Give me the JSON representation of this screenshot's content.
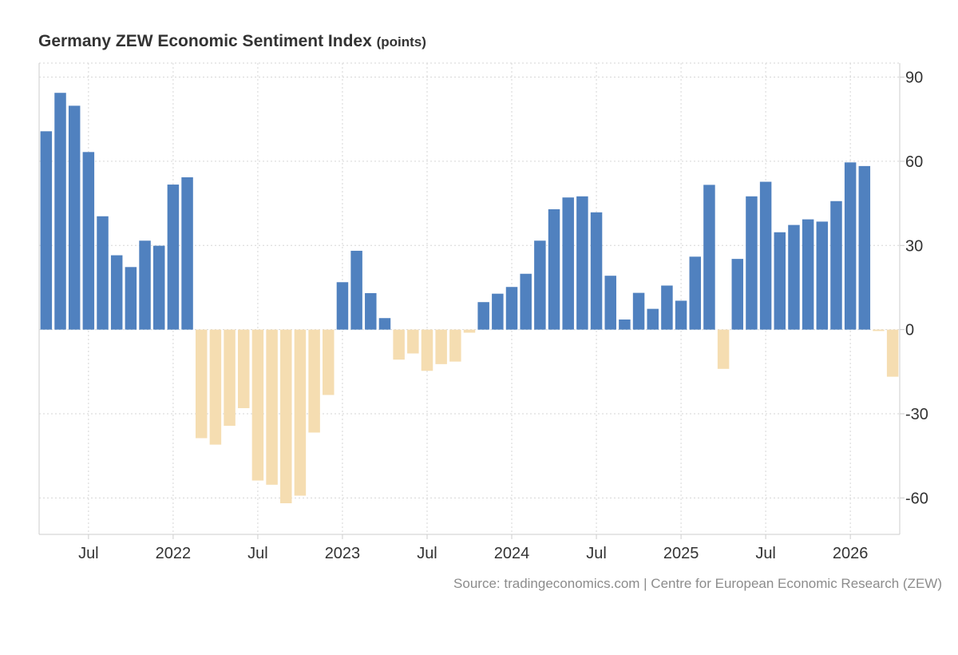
{
  "chart_data": {
    "type": "bar",
    "title": "Germany ZEW Economic Sentiment Index",
    "unit": "(points)",
    "source": "Source: tradingeconomics.com | Centre for European Economic Research (ZEW)",
    "ylim": [
      -73,
      95
    ],
    "yticks": [
      90,
      60,
      30,
      0,
      -30,
      -60
    ],
    "ytick_labels": [
      "90",
      "60",
      "30",
      "0",
      "-30",
      "-60"
    ],
    "x_start": "2021-04",
    "xticks": [
      {
        "index": 3,
        "label": "Jul"
      },
      {
        "index": 9,
        "label": "2022"
      },
      {
        "index": 15,
        "label": "Jul"
      },
      {
        "index": 21,
        "label": "2023"
      },
      {
        "index": 27,
        "label": "Jul"
      },
      {
        "index": 33,
        "label": "2024"
      },
      {
        "index": 39,
        "label": "Jul"
      },
      {
        "index": 45,
        "label": "2025"
      },
      {
        "index": 51,
        "label": "Jul"
      },
      {
        "index": 57,
        "label": "2026"
      }
    ],
    "values": [
      70.7,
      84.4,
      79.8,
      63.3,
      40.4,
      26.5,
      22.3,
      31.7,
      29.9,
      51.7,
      54.3,
      -38.7,
      -41.0,
      -34.3,
      -28.0,
      -53.8,
      -55.3,
      -61.9,
      -59.2,
      -36.7,
      -23.3,
      16.9,
      28.1,
      13.0,
      4.1,
      -10.7,
      -8.5,
      -14.7,
      -12.3,
      -11.4,
      -1.1,
      9.8,
      12.8,
      15.2,
      19.9,
      31.7,
      42.9,
      47.1,
      47.5,
      41.8,
      19.2,
      3.6,
      13.1,
      7.4,
      15.7,
      10.3,
      26.0,
      51.6,
      -14.0,
      25.2,
      47.5,
      52.7,
      34.7,
      37.3,
      39.3,
      38.5,
      45.8,
      59.6,
      58.3,
      -0.5,
      -16.8
    ],
    "colors": {
      "positive": "#5081bf",
      "negative": "#f5ddb1",
      "grid": "#d6d6d6",
      "axis": "#cccccc"
    }
  }
}
